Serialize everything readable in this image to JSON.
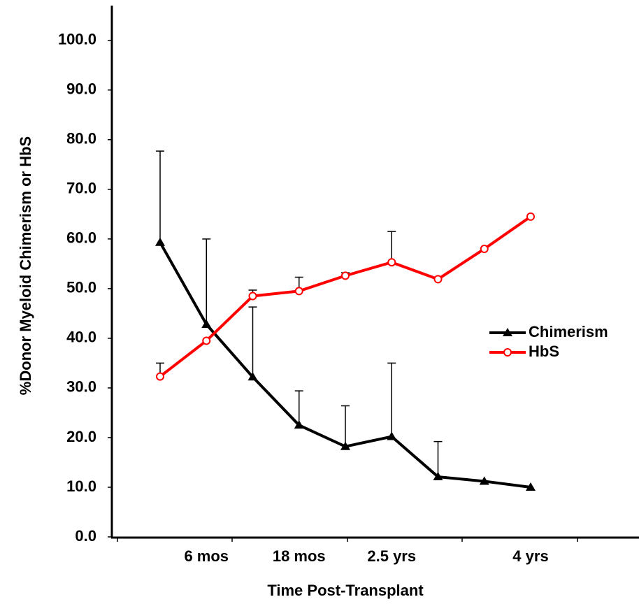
{
  "chart_data": {
    "type": "line",
    "x_label": "Time Post-Transplant",
    "y_label": "%Donor Myeloid Chimerism or HbS",
    "categories": [
      null,
      "6 mos",
      null,
      "18 mos",
      null,
      "2.5 yrs",
      null,
      null,
      "4 yrs"
    ],
    "series": [
      {
        "name": "Chimerism",
        "color": "#000000",
        "marker": "triangle",
        "values": [
          59.3,
          42.8,
          32.2,
          22.5,
          18.2,
          20.2,
          12.1,
          11.2,
          10.0
        ],
        "errors": [
          18.4,
          17.2,
          14.1,
          6.9,
          8.2,
          14.8,
          7.1,
          null,
          null
        ]
      },
      {
        "name": "HbS",
        "color": "#ff0000",
        "marker": "circle",
        "values": [
          32.3,
          39.5,
          48.5,
          49.5,
          52.6,
          55.3,
          51.9,
          58.0,
          64.5
        ],
        "errors": [
          2.7,
          null,
          1.2,
          2.8,
          0.6,
          6.2,
          null,
          null,
          null
        ]
      }
    ],
    "ylim": [
      0,
      107
    ],
    "yticks": [
      {
        "value": 0,
        "label": "0.0"
      },
      {
        "value": 10,
        "label": "10.0"
      },
      {
        "value": 20,
        "label": "20.0"
      },
      {
        "value": 30,
        "label": "30.0"
      },
      {
        "value": 40,
        "label": "40.0"
      },
      {
        "value": 50,
        "label": "50.0"
      },
      {
        "value": 60,
        "label": "60.0"
      },
      {
        "value": 70,
        "label": "70.0"
      },
      {
        "value": 80,
        "label": "80.0"
      },
      {
        "value": 90,
        "label": "90.0"
      },
      {
        "value": 100,
        "label": "100.0"
      }
    ],
    "grid": false
  }
}
